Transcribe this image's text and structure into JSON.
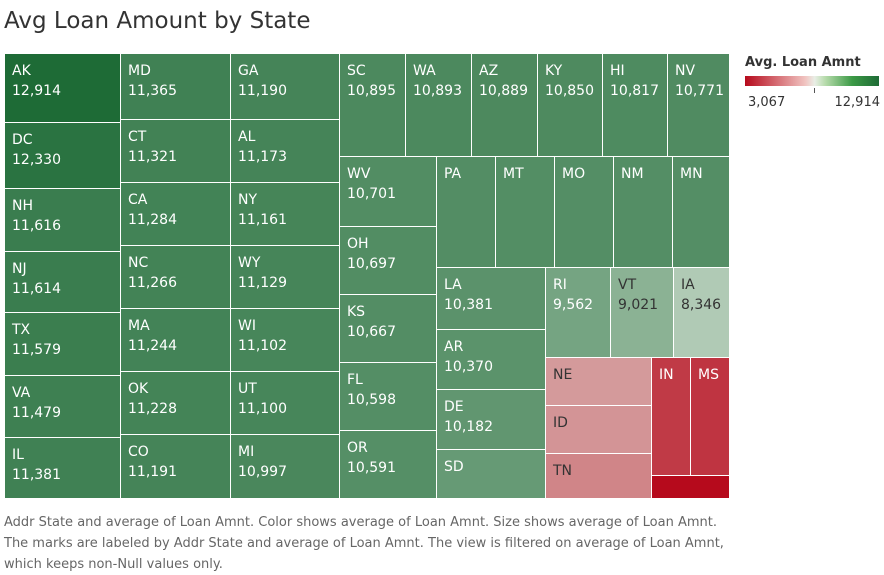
{
  "chart_data": {
    "type": "treemap",
    "title": "Avg Loan Amount by State",
    "legend": {
      "title": "Avg. Loan Amnt",
      "min_label": "3,067",
      "max_label": "12,914",
      "placement": "top-right"
    },
    "colors": {
      "low": "#b60a1c",
      "high": "#1e6b36",
      "mid": "#e6ede4"
    },
    "data": [
      {
        "state": "AK",
        "value": 12914,
        "label": "12,914"
      },
      {
        "state": "MD",
        "value": 11365,
        "label": "11,365"
      },
      {
        "state": "GA",
        "value": 11190,
        "label": "11,190"
      },
      {
        "state": "SC",
        "value": 10895,
        "label": "10,895"
      },
      {
        "state": "WA",
        "value": 10893,
        "label": "10,893"
      },
      {
        "state": "AZ",
        "value": 10889,
        "label": "10,889"
      },
      {
        "state": "KY",
        "value": 10850,
        "label": "10,850"
      },
      {
        "state": "HI",
        "value": 10817,
        "label": "10,817"
      },
      {
        "state": "NV",
        "value": 10771,
        "label": "10,771"
      },
      {
        "state": "DC",
        "value": 12330,
        "label": "12,330"
      },
      {
        "state": "CT",
        "value": 11321,
        "label": "11,321"
      },
      {
        "state": "AL",
        "value": 11173,
        "label": "11,173"
      },
      {
        "state": "WV",
        "value": 10701,
        "label": "10,701"
      },
      {
        "state": "PA",
        "value": 10650
      },
      {
        "state": "MT",
        "value": 10640
      },
      {
        "state": "MO",
        "value": 10630
      },
      {
        "state": "NM",
        "value": 10620
      },
      {
        "state": "MN",
        "value": 10610
      },
      {
        "state": "NH",
        "value": 11616,
        "label": "11,616"
      },
      {
        "state": "CA",
        "value": 11284,
        "label": "11,284"
      },
      {
        "state": "NY",
        "value": 11161,
        "label": "11,161"
      },
      {
        "state": "OH",
        "value": 10697,
        "label": "10,697"
      },
      {
        "state": "NJ",
        "value": 11614,
        "label": "11,614"
      },
      {
        "state": "NC",
        "value": 11266,
        "label": "11,266"
      },
      {
        "state": "WY",
        "value": 11129,
        "label": "11,129"
      },
      {
        "state": "LA",
        "value": 10381,
        "label": "10,381"
      },
      {
        "state": "RI",
        "value": 9562,
        "label": "9,562"
      },
      {
        "state": "VT",
        "value": 9021,
        "label": "9,021"
      },
      {
        "state": "IA",
        "value": 8346,
        "label": "8,346"
      },
      {
        "state": "TX",
        "value": 11579,
        "label": "11,579"
      },
      {
        "state": "MA",
        "value": 11244,
        "label": "11,244"
      },
      {
        "state": "WI",
        "value": 11102,
        "label": "11,102"
      },
      {
        "state": "KS",
        "value": 10667,
        "label": "10,667"
      },
      {
        "state": "AR",
        "value": 10370,
        "label": "10,370"
      },
      {
        "state": "NE",
        "value": 7200
      },
      {
        "state": "IN",
        "value": 4800
      },
      {
        "state": "MS",
        "value": 4600
      },
      {
        "state": "VA",
        "value": 11479,
        "label": "11,479"
      },
      {
        "state": "OK",
        "value": 11228,
        "label": "11,228"
      },
      {
        "state": "UT",
        "value": 11100,
        "label": "11,100"
      },
      {
        "state": "FL",
        "value": 10598,
        "label": "10,598"
      },
      {
        "state": "DE",
        "value": 10182,
        "label": "10,182"
      },
      {
        "state": "ID",
        "value": 7100
      },
      {
        "state": "IL",
        "value": 11381,
        "label": "11,381"
      },
      {
        "state": "CO",
        "value": 11191,
        "label": "11,191"
      },
      {
        "state": "MI",
        "value": 10997,
        "label": "10,997"
      },
      {
        "state": "OR",
        "value": 10591,
        "label": "10,591"
      },
      {
        "state": "SD",
        "value": 10000
      },
      {
        "state": "TN",
        "value": 6800
      },
      {
        "state": "",
        "value": 3067
      }
    ]
  },
  "caption": "Addr State and average of Loan Amnt.  Color shows average of Loan Amnt.  Size shows average of Loan Amnt.  The marks are labeled by Addr State and average of Loan Amnt. The view is filtered on average of Loan Amnt, which keeps non-Null values only."
}
